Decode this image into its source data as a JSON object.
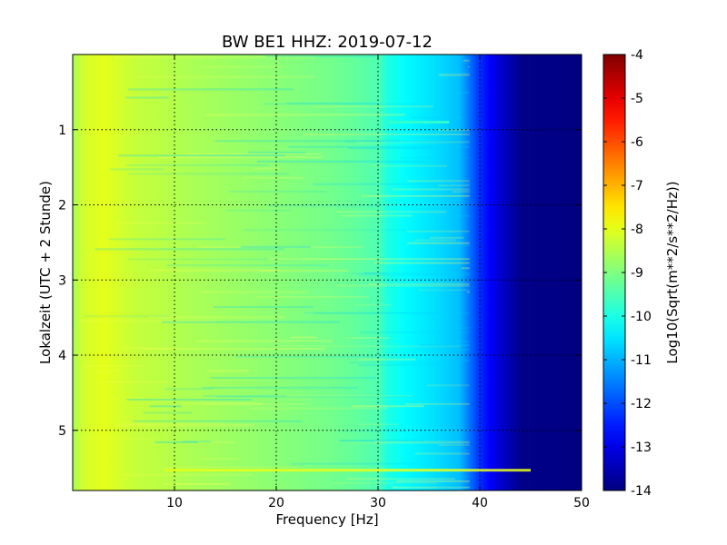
{
  "chart_data": {
    "type": "heatmap",
    "title": "BW BE1 HHZ: 2019-07-12",
    "xlabel": "Frequency [Hz]",
    "ylabel": "Lokalzeit (UTC + 2 Stunde)",
    "xlim": [
      0,
      50
    ],
    "ylim": [
      0,
      5.8
    ],
    "y_inverted": true,
    "x_ticks": [
      "10",
      "20",
      "30",
      "40",
      "50"
    ],
    "y_ticks": [
      "1",
      "2",
      "3",
      "4",
      "5"
    ],
    "grid": true,
    "colorbar": {
      "label": "Log10(Sqrt(m**2/s**2/Hz))",
      "range": [
        -14,
        -4
      ],
      "ticks": [
        "-4",
        "-5",
        "-6",
        "-7",
        "-8",
        "-9",
        "-10",
        "-11",
        "-12",
        "-13",
        "-14"
      ],
      "colormap": "jet"
    },
    "frequency_profile": {
      "x": [
        0,
        1,
        3,
        6,
        10,
        15,
        20,
        25,
        28,
        30,
        31,
        33,
        36,
        38,
        39,
        40,
        42,
        44,
        50
      ],
      "level": [
        -8.6,
        -8.2,
        -8.0,
        -8.3,
        -8.5,
        -8.7,
        -8.9,
        -9.1,
        -9.3,
        -9.5,
        -10.0,
        -10.3,
        -10.6,
        -10.9,
        -11.6,
        -12.3,
        -13.2,
        -13.9,
        -14.0
      ]
    },
    "highlights": [
      {
        "time": 5.53,
        "freq_range": [
          9,
          45
        ],
        "level": -8.0
      },
      {
        "time": 0.9,
        "freq_range": [
          31,
          37
        ],
        "level": -9.7
      }
    ]
  }
}
